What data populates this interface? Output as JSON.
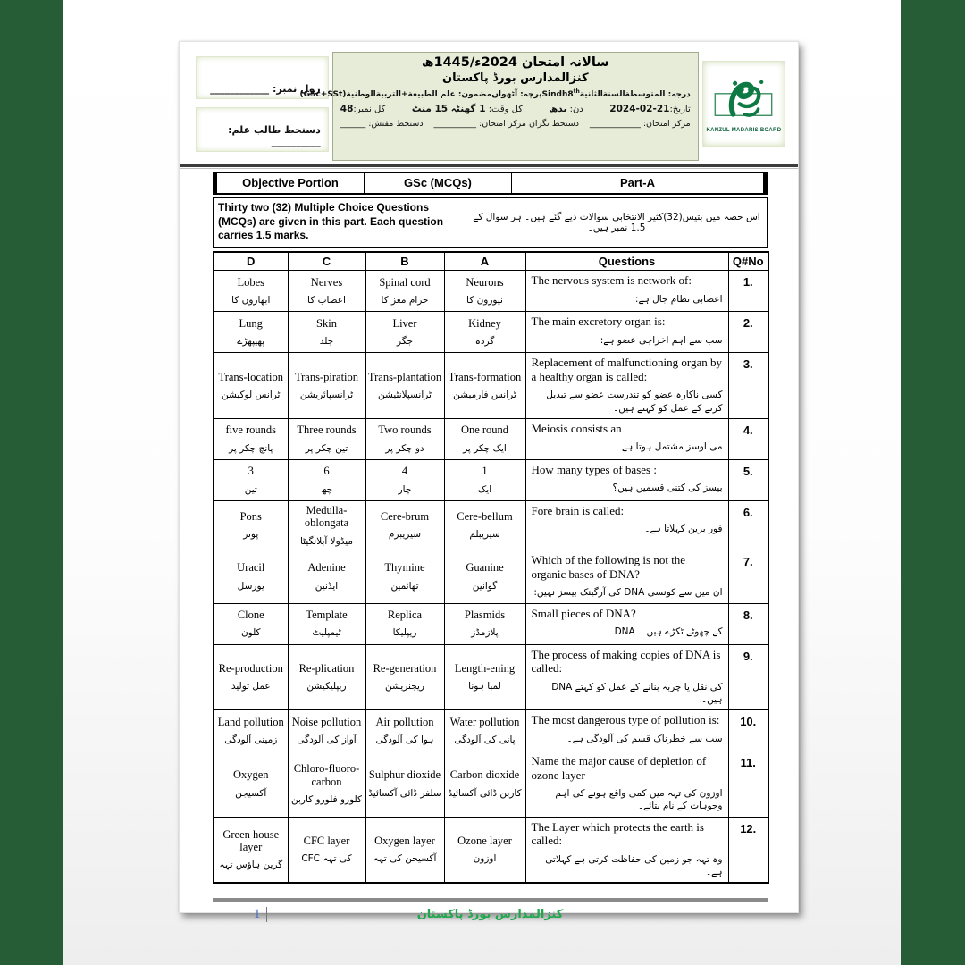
{
  "colors": {
    "band_green": "#265c36",
    "header_bg": "#e7ecd8",
    "footer_green": "#1fa84e",
    "page_number_blue": "#4a6fbf",
    "logo_green": "#0e7a43"
  },
  "id_panel": {
    "roll": "رول نمبر: ____________",
    "sign": "دستخط طالب علم: __________"
  },
  "exam_header": {
    "title1": "سالانہ امتحان 2024ء/1445ھ",
    "title2": "کنزالمدارس بورڈ پاکستان",
    "l3_grade_label": "درجہ:",
    "l3_grade_ar": "المتوسطةالسنةالثانية",
    "l3_grade_en": "Sindh8",
    "l3_grade_sup": "th",
    "l3_paper": "پرچہ: آٹھواں",
    "l3_subject_label": "مضمون:",
    "l3_subject_ar": "علم الطبيعة+التربيةالوطنية",
    "l3_subject_en": "(GSc+SSt)",
    "l4_date_label": "تاریخ:",
    "l4_date": "21-02-2024",
    "l4_day_label": "دن:",
    "l4_day": "بدھ",
    "l4_time_label": "کل وقت:",
    "l4_time": "1 گھنٹہ 15 منٹ",
    "l4_marks_label": "کل نمبر:",
    "l4_marks": "48",
    "l5_center": "مرکز امتحان: ____________",
    "l5_supervisor": "دستخط نگران مرکز امتحان: __________",
    "l5_inspector": "دستخط مفتش: ______"
  },
  "logo": {
    "caption": "KANZUL MADARIS BOARD"
  },
  "section_bar": {
    "left": "Objective Portion",
    "mid": "GSc (MCQs)",
    "right": "Part-A"
  },
  "instructions": {
    "en": "Thirty two (32) Multiple Choice Questions (MCQs) are given in this part. Each question carries 1.5 marks.",
    "ur": "اس حصہ میں بتیس(32)کثیر الانتخابی سوالات دیے گئے ہیں۔ ہر سوال کے 1.5 نمبر ہیں۔"
  },
  "table": {
    "headers": [
      "D",
      "C",
      "B",
      "A",
      "Questions",
      "Q#No"
    ],
    "rows": [
      {
        "no": "1.",
        "q_en": "The nervous system is network of:",
        "q_ur": "اعصابی نظام جال ہے:",
        "a_en": "Neurons",
        "a_ur": "نیورون کا",
        "b_en": "Spinal cord",
        "b_ur": "حرام مغز کا",
        "c_en": "Nerves",
        "c_ur": "اعصاب کا",
        "d_en": "Lobes",
        "d_ur": "ابھاروں کا"
      },
      {
        "no": "2.",
        "q_en": "The main excretory organ is:",
        "q_ur": "سب سے اہم اخراجی عضو ہے:",
        "a_en": "Kidney",
        "a_ur": "گردہ",
        "b_en": "Liver",
        "b_ur": "جگر",
        "c_en": "Skin",
        "c_ur": "جلد",
        "d_en": "Lung",
        "d_ur": "پھیپھڑے"
      },
      {
        "no": "3.",
        "q_en": "Replacement of malfunctioning organ by a healthy organ is called:",
        "q_ur": "کسی ناکارہ عضو کو تندرست عضو سے تبدیل کرنے کے عمل کو کہتے ہیں۔",
        "a_en": "Trans-formation",
        "a_ur": "ٹرانس فارمیشن",
        "b_en": "Trans-plantation",
        "b_ur": "ٹرانسپلانٹیشن",
        "c_en": "Trans-piration",
        "c_ur": "ٹرانسپائریشن",
        "d_en": "Trans-location",
        "d_ur": "ٹرانس لوکیشن"
      },
      {
        "no": "4.",
        "q_en": "Meiosis consists an",
        "q_ur": "می اوسز مشتمل ہوتا ہے۔",
        "a_en": "One round",
        "a_ur": "ایک چکر پر",
        "b_en": "Two rounds",
        "b_ur": "دو چکر پر",
        "c_en": "Three rounds",
        "c_ur": "تین چکر پر",
        "d_en": "five rounds",
        "d_ur": "پانچ چکر پر"
      },
      {
        "no": "5.",
        "q_en": "How many types of bases :",
        "q_ur": "بیسز کی کتنی قسمیں ہیں؟",
        "a_en": "1",
        "a_ur": "ایک",
        "b_en": "4",
        "b_ur": "چار",
        "c_en": "6",
        "c_ur": "چھ",
        "d_en": "3",
        "d_ur": "تین"
      },
      {
        "no": "6.",
        "q_en": "Fore brain is called:",
        "q_ur": "فور برین کہلاتا ہے۔",
        "a_en": "Cere-bellum",
        "a_ur": "سیریبلم",
        "b_en": "Cere-brum",
        "b_ur": "سیریبرم",
        "c_en": "Medulla-oblongata",
        "c_ur": "میڈولا آبلانگیٹا",
        "d_en": "Pons",
        "d_ur": "پونز"
      },
      {
        "no": "7.",
        "q_en": "Which of the following is not the organic bases of DNA?",
        "q_ur": "ان میں سے کونسی DNA کی آرگینک بیسز نہیں:",
        "a_en": "Guanine",
        "a_ur": "گوانین",
        "b_en": "Thymine",
        "b_ur": "تھائمین",
        "c_en": "Adenine",
        "c_ur": "ایڈنین",
        "d_en": "Uracil",
        "d_ur": "یورسل"
      },
      {
        "no": "8.",
        "q_en": "Small pieces of DNA?",
        "q_ur": "DNA کے چھوٹے ٹکڑے ہیں ۔",
        "q_ur_dir": "ltr",
        "a_en": "Plasmids",
        "a_ur": "پلازمڈز",
        "b_en": "Replica",
        "b_ur": "ریپلیکا",
        "c_en": "Template",
        "c_ur": "ٹیمپلیٹ",
        "d_en": "Clone",
        "d_ur": "کلون"
      },
      {
        "no": "9.",
        "q_en": "The process of making copies of DNA is called:",
        "q_ur": "DNA کی نقل یا چربہ بنانے کے عمل کو کہتے ہیں۔",
        "q_ur_dir": "ltr",
        "a_en": "Length-ening",
        "a_ur": "لمبا ہونا",
        "b_en": "Re-generation",
        "b_ur": "ریجنریشن",
        "c_en": "Re-plication",
        "c_ur": "ریپلیکیشن",
        "d_en": "Re-production",
        "d_ur": "عمل تولید"
      },
      {
        "no": "10.",
        "q_en": "The most dangerous type of pollution is:",
        "q_ur": "سب سے خطرناک قسم کی آلودگی ہے۔",
        "a_en": "Water pollution",
        "a_ur": "پانی کی آلودگی",
        "b_en": "Air pollution",
        "b_ur": "ہوا کی آلودگی",
        "c_en": "Noise pollution",
        "c_ur": "آواز کی آلودگی",
        "d_en": "Land pollution",
        "d_ur": "زمینی آلودگی"
      },
      {
        "no": "11.",
        "q_en": "Name the major cause of depletion of ozone layer",
        "q_ur": "اوزون کی تہہ میں کمی واقع ہونے کی اہم وجوہات کے نام بتائے۔",
        "a_en": "Carbon dioxide",
        "a_ur": "کاربن ڈائی آکسائیڈ",
        "b_en": "Sulphur dioxide",
        "b_ur": "سلفر ڈائی آکسائیڈ",
        "c_en": "Chloro-fluoro-carbon",
        "c_ur": "کلورو فلورو کاربن",
        "d_en": "Oxygen",
        "d_ur": "آکسیجن"
      },
      {
        "no": "12.",
        "q_en": "The Layer which protects the earth is called:",
        "q_ur": "وہ تہہ جو زمین کی حفاظت کرتی ہے کہلاتی ہے۔",
        "a_en": "Ozone layer",
        "a_ur": "اوزون",
        "b_en": "Oxygen layer",
        "b_ur": "آکسیجن کی تہہ",
        "c_en": "CFC layer",
        "c_ur": "CFC کی تہہ",
        "c_ur_dir": "ltr",
        "d_en": "Green house layer",
        "d_ur": "گرین ہاؤس تہہ"
      }
    ]
  },
  "footer": {
    "page_num": "1",
    "board_ur": "کنزالمدارس بورڈ پاکستان"
  }
}
